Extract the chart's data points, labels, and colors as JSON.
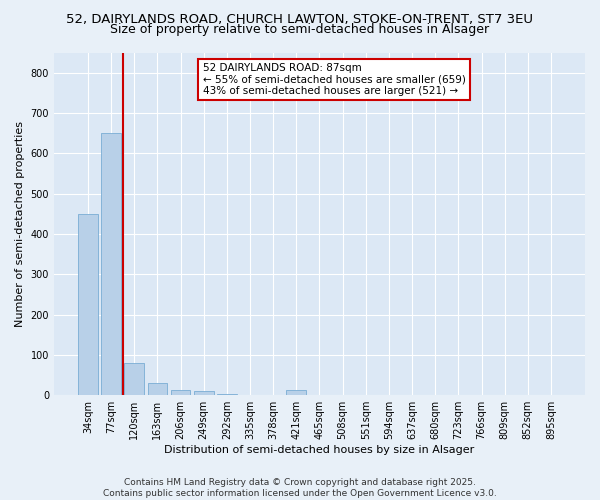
{
  "title_line1": "52, DAIRYLANDS ROAD, CHURCH LAWTON, STOKE-ON-TRENT, ST7 3EU",
  "title_line2": "Size of property relative to semi-detached houses in Alsager",
  "xlabel": "Distribution of semi-detached houses by size in Alsager",
  "ylabel": "Number of semi-detached properties",
  "categories": [
    "34sqm",
    "77sqm",
    "120sqm",
    "163sqm",
    "206sqm",
    "249sqm",
    "292sqm",
    "335sqm",
    "378sqm",
    "421sqm",
    "465sqm",
    "508sqm",
    "551sqm",
    "594sqm",
    "637sqm",
    "680sqm",
    "723sqm",
    "766sqm",
    "809sqm",
    "852sqm",
    "895sqm"
  ],
  "values": [
    450,
    651,
    80,
    30,
    14,
    10,
    2,
    0,
    0,
    14,
    0,
    0,
    0,
    0,
    0,
    0,
    0,
    0,
    0,
    0,
    0
  ],
  "bar_color": "#b8d0e8",
  "bar_edge_color": "#7aadd4",
  "vline_x": 1.5,
  "vline_color": "#cc0000",
  "annotation_text": "52 DAIRYLANDS ROAD: 87sqm\n← 55% of semi-detached houses are smaller (659)\n43% of semi-detached houses are larger (521) →",
  "annotation_box_facecolor": "#ffffff",
  "annotation_box_edgecolor": "#cc0000",
  "ylim": [
    0,
    850
  ],
  "yticks": [
    0,
    100,
    200,
    300,
    400,
    500,
    600,
    700,
    800
  ],
  "fig_bg_color": "#e8f0f8",
  "plot_bg_color": "#dce8f5",
  "footer_line1": "Contains HM Land Registry data © Crown copyright and database right 2025.",
  "footer_line2": "Contains public sector information licensed under the Open Government Licence v3.0.",
  "title_fontsize": 9.5,
  "subtitle_fontsize": 9,
  "axis_label_fontsize": 8,
  "tick_fontsize": 7,
  "annotation_fontsize": 7.5,
  "footer_fontsize": 6.5
}
